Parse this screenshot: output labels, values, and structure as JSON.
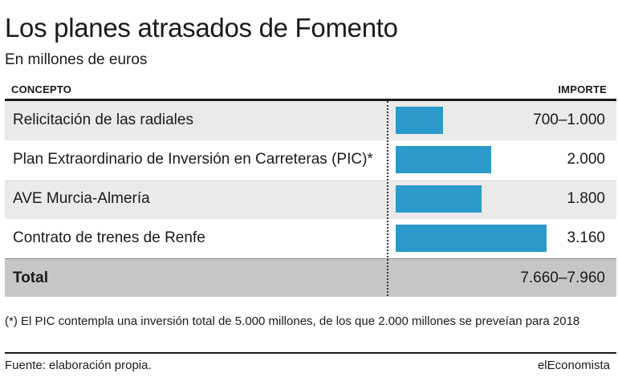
{
  "title": "Los planes atrasados de Fomento",
  "subtitle": "En millones de euros",
  "columns": {
    "left": "CONCEPTO",
    "right": "IMPORTE"
  },
  "colors": {
    "bar": "#2b9acb",
    "row_shade": "#eaeaea",
    "total_shade": "#c6c6c6"
  },
  "chart_data": {
    "type": "bar",
    "orientation": "horizontal",
    "categories": [
      "Relicitación de las radiales",
      "Plan Extraordinario de Inversión en Carreteras (PIC)*",
      "AVE Murcia-Almería",
      "Contrato de trenes de Renfe"
    ],
    "values": [
      1000,
      2000,
      1800,
      3160
    ],
    "value_labels": [
      "700–1.000",
      "2.000",
      "1.800",
      "3.160"
    ],
    "xlim": [
      0,
      3300
    ],
    "grid": false,
    "total": {
      "label": "Total",
      "value_label": "7.660–7.960"
    }
  },
  "note": "(*) El PIC contempla una inversión total de 5.000 millones, de los que 2.000 millones se preveían para 2018",
  "source": "Fuente: elaboración propia.",
  "brand": "elEconomista"
}
